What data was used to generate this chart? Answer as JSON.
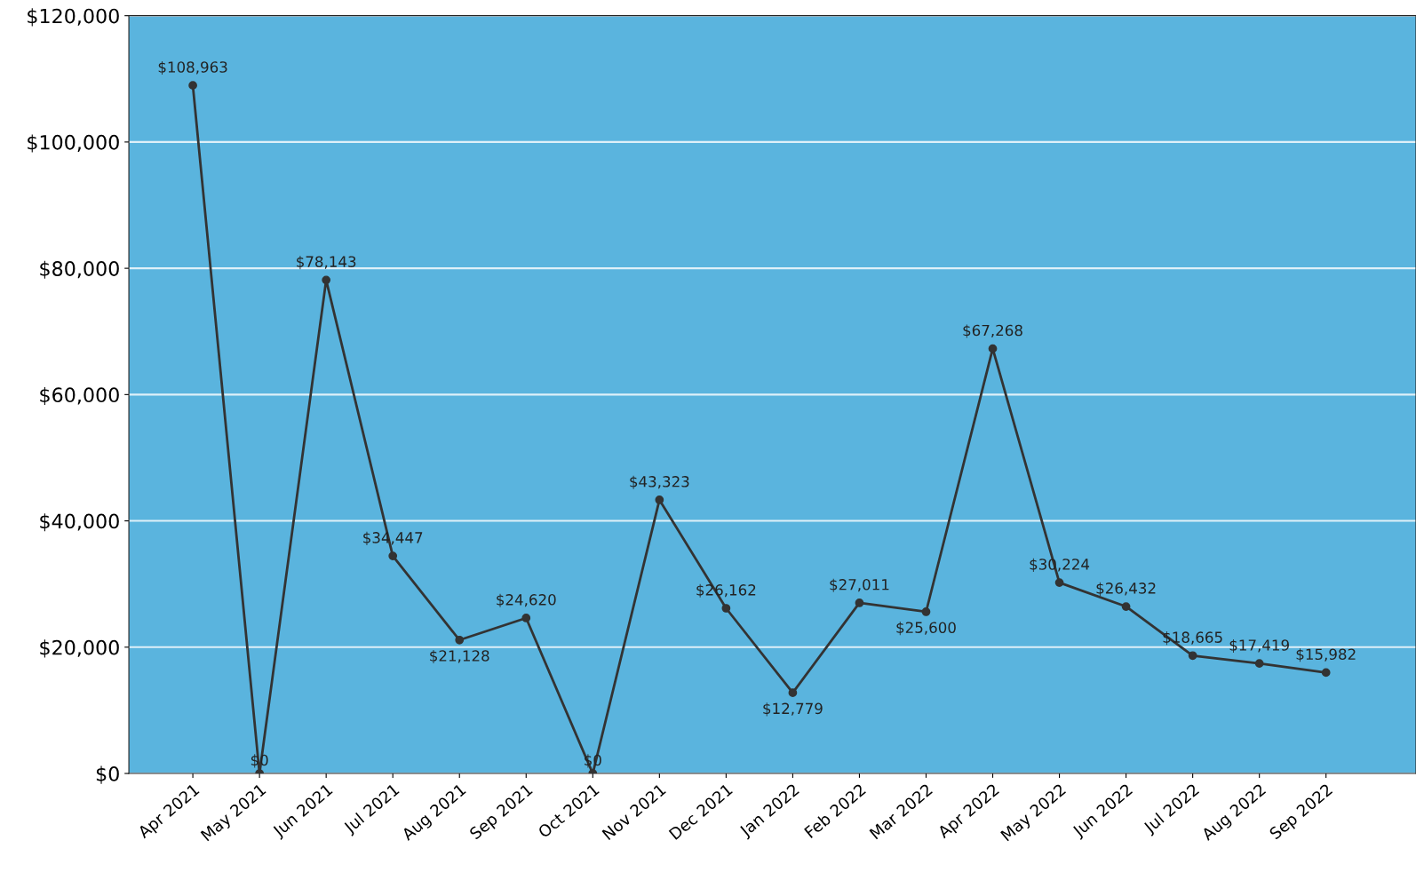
{
  "chart_data": {
    "type": "line",
    "categories": [
      "Apr 2021",
      "May 2021",
      "Jun 2021",
      "Jul 2021",
      "Aug 2021",
      "Sep 2021",
      "Oct 2021",
      "Nov 2021",
      "Dec 2021",
      "Jan 2022",
      "Feb 2022",
      "Mar 2022",
      "Apr 2022",
      "May 2022",
      "Jun 2022",
      "Jul 2022",
      "Aug 2022",
      "Sep 2022"
    ],
    "series": [
      {
        "color": "#333333",
        "values": [
          108963,
          0,
          78143,
          34447,
          21128,
          24620,
          0,
          43323,
          26162,
          12779,
          27011,
          25600,
          67268,
          30224,
          26432,
          18665,
          17419,
          15982
        ],
        "value_labels": [
          "$108,963",
          "$0",
          "$78,143",
          "$34,447",
          "$21,128",
          "$24,620",
          "$0",
          "$43,323",
          "$26,162",
          "$12,779",
          "$27,011",
          "$25,600",
          "$67,268",
          "$30,224",
          "$26,432",
          "$18,665",
          "$17,419",
          "$15,982"
        ]
      }
    ],
    "ylim": [
      0,
      120000
    ],
    "yticks": [
      {
        "value": 0,
        "label": "$0"
      },
      {
        "value": 20000,
        "label": "$20,000"
      },
      {
        "value": 40000,
        "label": "$40,000"
      },
      {
        "value": 60000,
        "label": "$60,000"
      },
      {
        "value": 80000,
        "label": "$80,000"
      },
      {
        "value": 100000,
        "label": "$100,000"
      },
      {
        "value": 120000,
        "label": "$120,000"
      }
    ],
    "grid": "y",
    "marker": "circle",
    "line_style": "solid"
  }
}
